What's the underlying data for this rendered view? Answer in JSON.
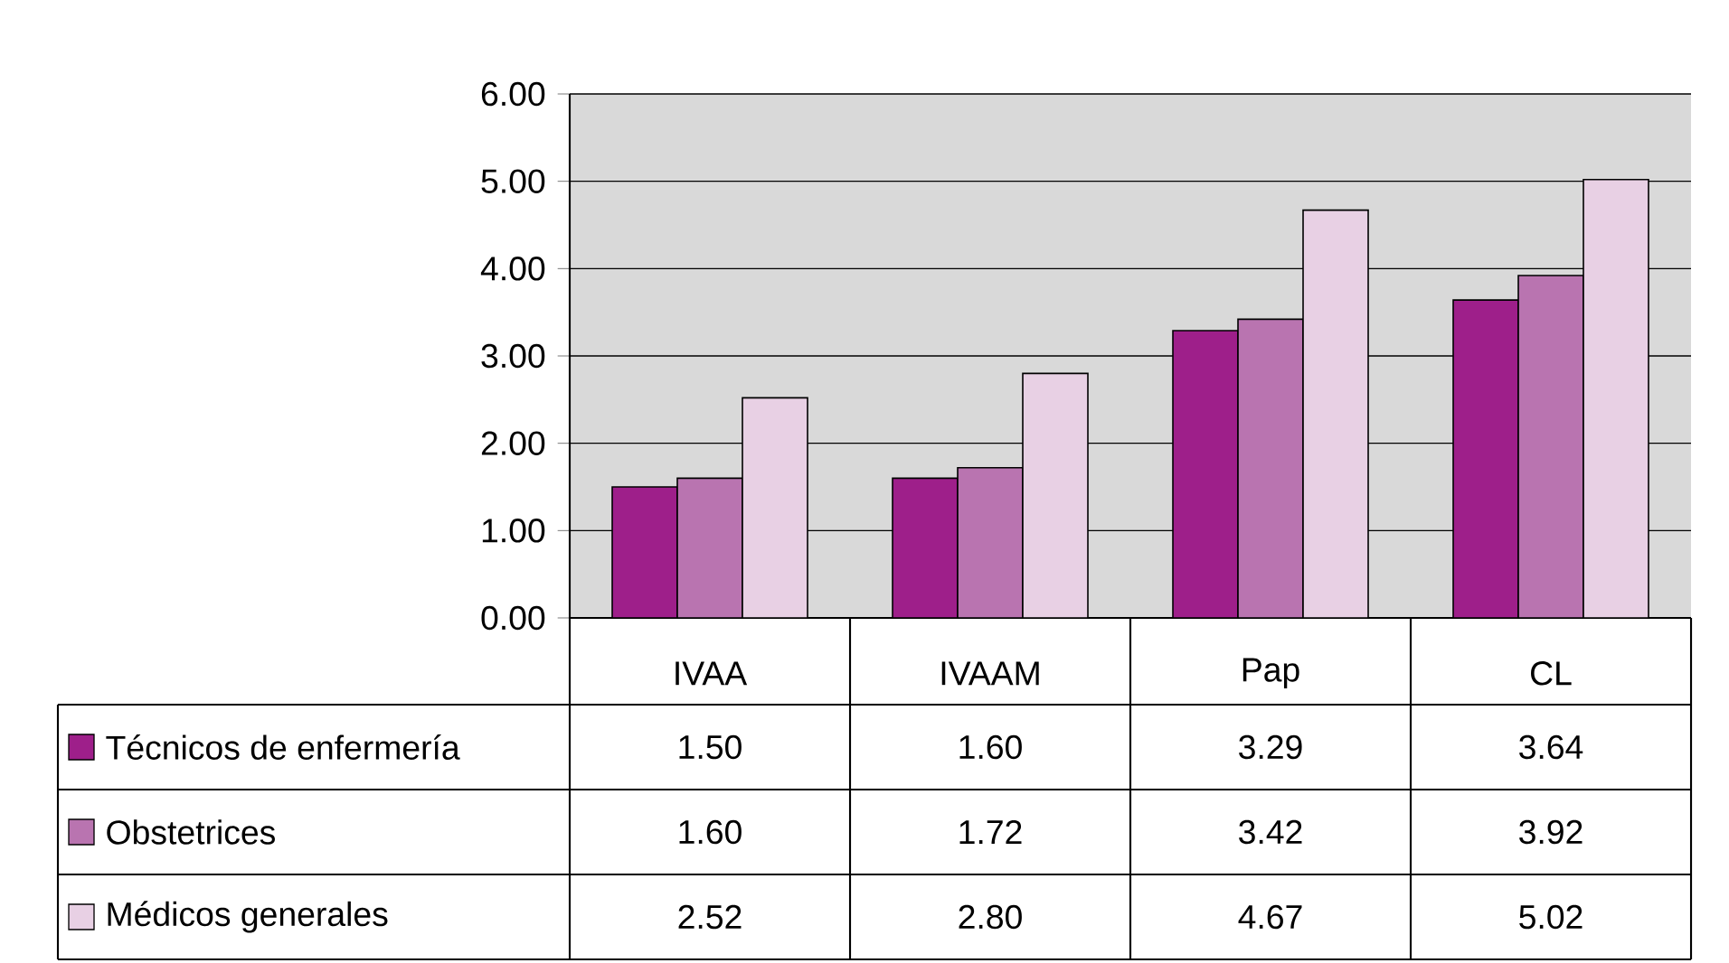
{
  "chart_data": {
    "type": "bar",
    "categories": [
      "IVAA",
      "IVAAM",
      "Pap",
      "CL"
    ],
    "series": [
      {
        "name": "Técnicos de enfermería",
        "color": "#9e1f8a",
        "values": [
          1.5,
          1.6,
          3.29,
          3.64
        ],
        "value_labels": [
          "1.50",
          "1.60",
          "3.29",
          "3.64"
        ]
      },
      {
        "name": "Obstetrices",
        "color": "#b974b0",
        "values": [
          1.6,
          1.72,
          3.42,
          3.92
        ],
        "value_labels": [
          "1.60",
          "1.72",
          "3.42",
          "3.92"
        ]
      },
      {
        "name": "Médicos generales",
        "color": "#e8d0e4",
        "values": [
          2.52,
          2.8,
          4.67,
          5.02
        ],
        "value_labels": [
          "2.52",
          "2.80",
          "4.67",
          "5.02"
        ]
      }
    ],
    "ylim": [
      0,
      6
    ],
    "yticks": [
      {
        "value": 0,
        "label": "0.00"
      },
      {
        "value": 1,
        "label": "1.00"
      },
      {
        "value": 2,
        "label": "2.00"
      },
      {
        "value": 3,
        "label": "3.00"
      },
      {
        "value": 4,
        "label": "4.00"
      },
      {
        "value": 5,
        "label": "5.00"
      },
      {
        "value": 6,
        "label": "6.00"
      }
    ],
    "grid": "y",
    "legend": "bottom"
  }
}
